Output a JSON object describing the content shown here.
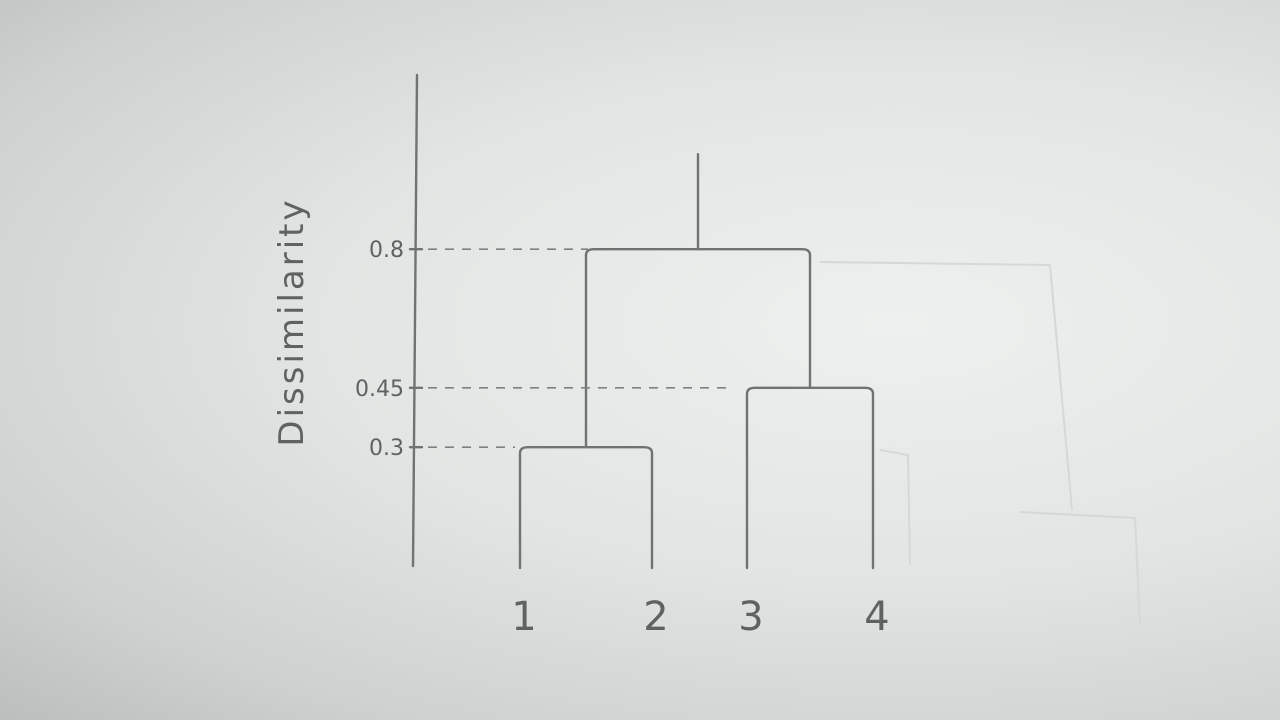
{
  "chart_data": {
    "type": "dendrogram",
    "title": "",
    "ylabel": "Dissimilarity",
    "xlabel": "",
    "leaves": [
      "1",
      "2",
      "3",
      "4"
    ],
    "y_ticks": [
      {
        "value": 0.3,
        "label": "0.3"
      },
      {
        "value": 0.45,
        "label": "0.45"
      },
      {
        "value": 0.8,
        "label": "0.8"
      }
    ],
    "merges": [
      {
        "left": "1",
        "right": "2",
        "height": 0.3
      },
      {
        "left": "3",
        "right": "4",
        "height": 0.45
      },
      {
        "left": "1+2",
        "right": "3+4",
        "height": 0.8
      }
    ],
    "ylim": [
      0,
      1.24
    ],
    "grid": false
  }
}
